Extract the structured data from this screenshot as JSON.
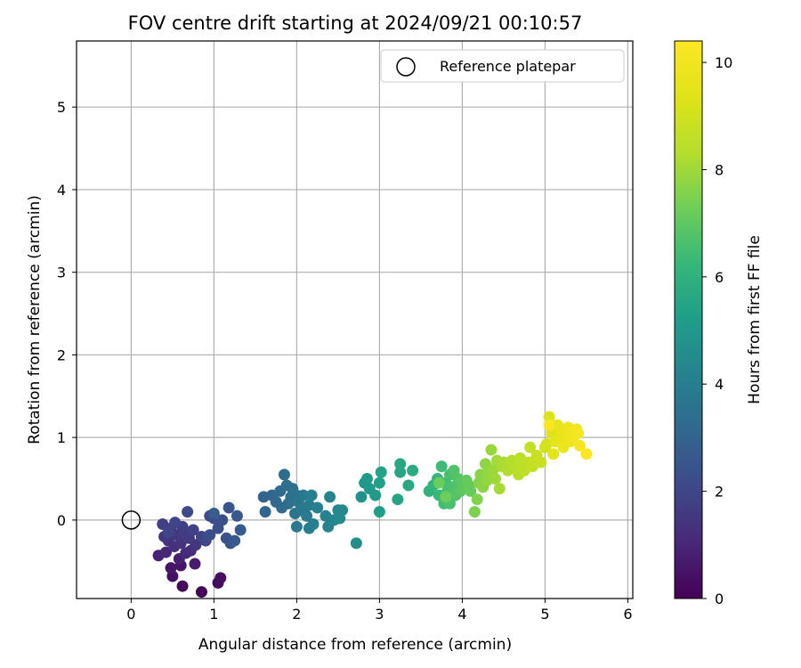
{
  "chart_data": {
    "type": "scatter",
    "title": "FOV centre drift starting at 2024/09/21 00:10:57",
    "xlabel": "Angular distance from reference (arcmin)",
    "ylabel": "Rotation from reference (arcmin)",
    "xlim": [
      -0.66,
      6.06
    ],
    "ylim": [
      -0.95,
      5.8
    ],
    "xticks": [
      "0",
      "1",
      "2",
      "3",
      "4",
      "5",
      "6"
    ],
    "yticks": [
      "0",
      "1",
      "2",
      "3",
      "4",
      "5"
    ],
    "grid": true,
    "colormap": "viridis",
    "colorbar": {
      "label": "Hours from first FF file",
      "range": [
        0,
        10.4
      ],
      "ticks": [
        "0",
        "2",
        "4",
        "6",
        "8",
        "10"
      ]
    },
    "legend": {
      "position": "top-right",
      "entries": [
        "Reference platepar"
      ]
    },
    "reference_point": {
      "x": 0,
      "y": 0
    },
    "points": [
      [
        0.85,
        -0.87,
        0.1
      ],
      [
        0.62,
        -0.8,
        0.2
      ],
      [
        1.05,
        -0.76,
        0.3
      ],
      [
        1.08,
        -0.7,
        0.35
      ],
      [
        0.5,
        -0.68,
        0.4
      ],
      [
        0.6,
        -0.55,
        0.5
      ],
      [
        0.48,
        -0.58,
        0.6
      ],
      [
        0.77,
        -0.53,
        0.7
      ],
      [
        0.58,
        -0.47,
        0.8
      ],
      [
        0.33,
        -0.43,
        0.9
      ],
      [
        0.42,
        -0.39,
        1.0
      ],
      [
        0.66,
        -0.4,
        1.1
      ],
      [
        0.72,
        -0.37,
        1.2
      ],
      [
        0.52,
        -0.32,
        1.3
      ],
      [
        0.45,
        -0.25,
        1.35
      ],
      [
        0.6,
        -0.28,
        1.4
      ],
      [
        0.78,
        -0.3,
        1.45
      ],
      [
        0.4,
        -0.2,
        1.5
      ],
      [
        0.55,
        -0.18,
        1.55
      ],
      [
        0.65,
        -0.15,
        1.6
      ],
      [
        0.7,
        -0.22,
        1.65
      ],
      [
        0.48,
        -0.1,
        1.7
      ],
      [
        0.62,
        -0.08,
        1.75
      ],
      [
        0.38,
        -0.05,
        1.8
      ],
      [
        0.75,
        -0.12,
        1.85
      ],
      [
        0.85,
        -0.2,
        1.9
      ],
      [
        0.53,
        -0.03,
        1.95
      ],
      [
        0.45,
        -0.15,
        2.0
      ],
      [
        0.9,
        -0.25,
        2.05
      ],
      [
        0.68,
        0.1,
        2.1
      ],
      [
        0.95,
        0.05,
        2.15
      ],
      [
        1.0,
        0.02,
        2.2
      ],
      [
        0.95,
        -0.18,
        2.25
      ],
      [
        1.05,
        -0.1,
        2.3
      ],
      [
        1.1,
        0.0,
        2.35
      ],
      [
        1.15,
        -0.22,
        2.4
      ],
      [
        1.2,
        -0.28,
        2.45
      ],
      [
        1.18,
        0.15,
        2.5
      ],
      [
        1.28,
        0.05,
        2.6
      ],
      [
        1.25,
        -0.25,
        2.65
      ],
      [
        1.32,
        -0.12,
        2.7
      ],
      [
        1.0,
        0.08,
        2.75
      ],
      [
        1.6,
        0.28,
        3.0
      ],
      [
        1.62,
        0.1,
        3.05
      ],
      [
        1.7,
        0.3,
        3.1
      ],
      [
        1.75,
        0.22,
        3.15
      ],
      [
        1.8,
        0.35,
        3.2
      ],
      [
        1.82,
        0.15,
        3.25
      ],
      [
        1.85,
        0.55,
        3.3
      ],
      [
        1.88,
        0.42,
        3.35
      ],
      [
        1.9,
        0.2,
        3.4
      ],
      [
        1.93,
        0.28,
        3.45
      ],
      [
        1.95,
        0.38,
        3.5
      ],
      [
        1.98,
        0.08,
        3.55
      ],
      [
        2.0,
        0.3,
        3.6
      ],
      [
        2.02,
        0.22,
        3.65
      ],
      [
        2.05,
        0.12,
        3.7
      ],
      [
        2.08,
        0.3,
        3.75
      ],
      [
        2.0,
        -0.08,
        3.8
      ],
      [
        2.12,
        0.05,
        3.85
      ],
      [
        2.15,
        0.18,
        3.9
      ],
      [
        2.18,
        0.3,
        3.95
      ],
      [
        2.15,
        -0.1,
        4.0
      ],
      [
        2.2,
        -0.05,
        4.05
      ],
      [
        2.25,
        0.15,
        4.1
      ],
      [
        2.35,
        0.05,
        4.15
      ],
      [
        2.38,
        -0.08,
        4.2
      ],
      [
        2.4,
        0.28,
        4.25
      ],
      [
        2.45,
        0.0,
        4.3
      ],
      [
        2.5,
        0.12,
        4.35
      ],
      [
        2.55,
        0.12,
        4.4
      ],
      [
        2.52,
        0.02,
        4.45
      ],
      [
        2.72,
        -0.28,
        4.6
      ],
      [
        2.78,
        0.28,
        4.8
      ],
      [
        2.82,
        0.45,
        4.9
      ],
      [
        2.85,
        0.5,
        5.0
      ],
      [
        2.88,
        0.38,
        5.05
      ],
      [
        2.95,
        0.3,
        5.1
      ],
      [
        3.0,
        0.1,
        5.2
      ],
      [
        3.0,
        0.45,
        5.3
      ],
      [
        3.02,
        0.58,
        5.4
      ],
      [
        3.22,
        0.25,
        5.5
      ],
      [
        3.25,
        0.58,
        5.55
      ],
      [
        3.25,
        0.68,
        5.6
      ],
      [
        3.35,
        0.42,
        5.65
      ],
      [
        3.4,
        0.6,
        5.7
      ],
      [
        3.6,
        0.35,
        6.0
      ],
      [
        3.65,
        0.42,
        6.1
      ],
      [
        3.7,
        0.5,
        6.2
      ],
      [
        3.72,
        0.3,
        6.3
      ],
      [
        3.75,
        0.65,
        6.4
      ],
      [
        3.78,
        0.2,
        6.45
      ],
      [
        3.8,
        0.45,
        6.5
      ],
      [
        3.82,
        0.35,
        6.55
      ],
      [
        3.85,
        0.55,
        6.6
      ],
      [
        3.85,
        0.2,
        6.65
      ],
      [
        3.88,
        0.4,
        6.7
      ],
      [
        3.9,
        0.6,
        6.75
      ],
      [
        3.92,
        0.3,
        6.8
      ],
      [
        3.95,
        0.5,
        6.85
      ],
      [
        3.98,
        0.35,
        6.9
      ],
      [
        4.0,
        0.45,
        6.95
      ],
      [
        4.02,
        0.38,
        7.0
      ],
      [
        4.05,
        0.48,
        7.05
      ],
      [
        4.08,
        0.42,
        7.1
      ],
      [
        4.1,
        0.35,
        7.15
      ],
      [
        3.72,
        0.45,
        7.2
      ],
      [
        3.8,
        0.28,
        7.25
      ],
      [
        4.15,
        0.1,
        7.5
      ],
      [
        4.18,
        0.25,
        7.55
      ],
      [
        4.2,
        0.45,
        7.6
      ],
      [
        4.22,
        0.55,
        7.65
      ],
      [
        4.25,
        0.4,
        7.7
      ],
      [
        4.28,
        0.68,
        7.75
      ],
      [
        4.3,
        0.48,
        7.8
      ],
      [
        4.32,
        0.58,
        7.85
      ],
      [
        4.35,
        0.85,
        7.9
      ],
      [
        4.38,
        0.62,
        7.95
      ],
      [
        4.4,
        0.5,
        8.0
      ],
      [
        4.42,
        0.72,
        8.05
      ],
      [
        4.45,
        0.38,
        8.1
      ],
      [
        4.48,
        0.65,
        8.15
      ],
      [
        4.5,
        0.7,
        8.2
      ],
      [
        4.55,
        0.6,
        8.25
      ],
      [
        4.6,
        0.72,
        8.3
      ],
      [
        4.65,
        0.65,
        8.35
      ],
      [
        4.68,
        0.55,
        8.4
      ],
      [
        4.7,
        0.75,
        8.45
      ],
      [
        4.72,
        0.68,
        8.5
      ],
      [
        4.75,
        0.6,
        8.55
      ],
      [
        4.8,
        0.7,
        8.6
      ],
      [
        4.82,
        0.88,
        8.65
      ],
      [
        4.85,
        0.65,
        8.7
      ],
      [
        4.88,
        0.72,
        8.75
      ],
      [
        4.9,
        0.78,
        8.8
      ],
      [
        4.95,
        0.7,
        8.85
      ],
      [
        5.0,
        0.88,
        9.0
      ],
      [
        5.02,
        0.92,
        9.1
      ],
      [
        5.05,
        1.25,
        9.3
      ],
      [
        5.08,
        1.05,
        9.4
      ],
      [
        5.1,
        0.8,
        9.5
      ],
      [
        5.12,
        0.95,
        9.55
      ],
      [
        5.15,
        1.15,
        9.6
      ],
      [
        5.18,
        1.0,
        9.65
      ],
      [
        5.2,
        1.1,
        9.7
      ],
      [
        5.22,
        0.88,
        9.75
      ],
      [
        5.25,
        1.05,
        9.8
      ],
      [
        5.28,
        1.12,
        9.85
      ],
      [
        5.3,
        0.95,
        9.9
      ],
      [
        5.32,
        1.08,
        9.95
      ],
      [
        5.35,
        1.02,
        10.0
      ],
      [
        5.38,
        1.1,
        10.05
      ],
      [
        5.4,
        1.05,
        10.1
      ],
      [
        5.42,
        0.9,
        10.15
      ],
      [
        5.5,
        0.8,
        10.3
      ],
      [
        5.05,
        1.15,
        10.2
      ]
    ]
  }
}
